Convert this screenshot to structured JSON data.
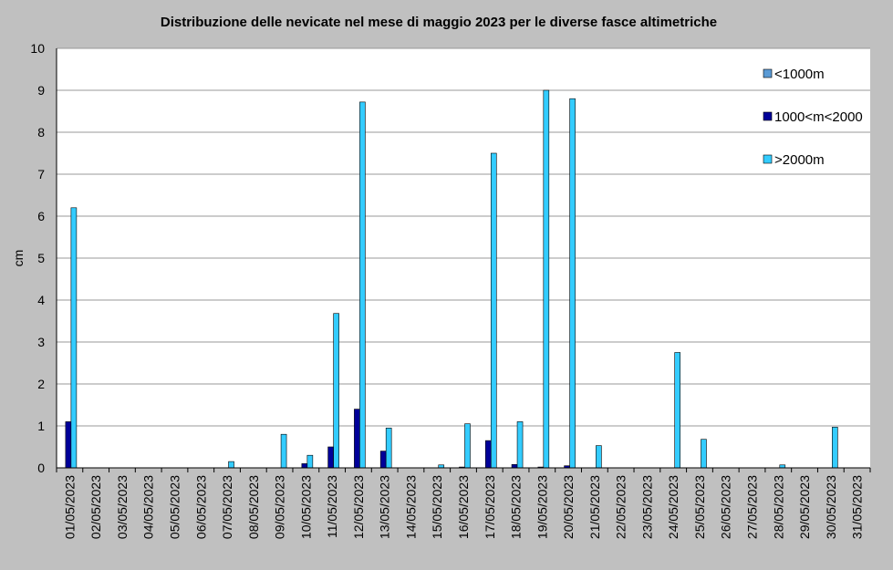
{
  "chart_data": {
    "type": "bar",
    "title": "Distribuzione delle nevicate nel mese di maggio 2023 per le diverse fasce altimetriche",
    "xlabel": "",
    "ylabel": "cm",
    "ylim": [
      0,
      10
    ],
    "yticks": [
      "0",
      "1",
      "2",
      "3",
      "4",
      "5",
      "6",
      "7",
      "8",
      "9",
      "10"
    ],
    "grid": true,
    "legend_position": "top-right",
    "categories": [
      "01/05/2023",
      "02/05/2023",
      "03/05/2023",
      "04/05/2023",
      "05/05/2023",
      "06/05/2023",
      "07/05/2023",
      "08/05/2023",
      "09/05/2023",
      "10/05/2023",
      "11/05/2023",
      "12/05/2023",
      "13/05/2023",
      "14/05/2023",
      "15/05/2023",
      "16/05/2023",
      "17/05/2023",
      "18/05/2023",
      "19/05/2023",
      "20/05/2023",
      "21/05/2023",
      "22/05/2023",
      "23/05/2023",
      "24/05/2023",
      "25/05/2023",
      "26/05/2023",
      "27/05/2023",
      "28/05/2023",
      "29/05/2023",
      "30/05/2023",
      "31/05/2023"
    ],
    "series": [
      {
        "name": "<1000m",
        "color": "#5b9bd5",
        "values": [
          0,
          0,
          0,
          0,
          0,
          0,
          0,
          0,
          0,
          0,
          0,
          0,
          0,
          0,
          0,
          0,
          0,
          0,
          0,
          0,
          0,
          0,
          0,
          0,
          0,
          0,
          0,
          0,
          0,
          0,
          0
        ]
      },
      {
        "name": "1000<m<2000",
        "color": "#000099",
        "values": [
          1.1,
          0,
          0,
          0,
          0,
          0,
          0,
          0,
          0,
          0.1,
          0.5,
          1.4,
          0.4,
          0,
          0,
          0.02,
          0.65,
          0.08,
          0.02,
          0.05,
          0,
          0,
          0,
          0,
          0,
          0,
          0,
          0,
          0,
          0,
          0
        ]
      },
      {
        "name": ">2000m",
        "color": "#33ccff",
        "values": [
          6.2,
          0,
          0,
          0,
          0,
          0,
          0.15,
          0,
          0.8,
          0.3,
          3.68,
          8.72,
          0.95,
          0,
          0.07,
          1.05,
          7.5,
          1.1,
          9.0,
          8.8,
          0.53,
          0,
          0,
          2.75,
          0.68,
          0,
          0,
          0.07,
          0,
          0.97,
          0
        ]
      }
    ]
  }
}
